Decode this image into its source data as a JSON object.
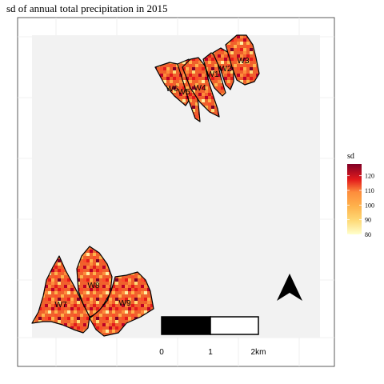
{
  "title": "sd of annual total precipitation in 2015",
  "legend": {
    "title": "sd",
    "ticks": [
      {
        "label": "80",
        "value": 80
      },
      {
        "label": "90",
        "value": 90
      },
      {
        "label": "100",
        "value": 100
      },
      {
        "label": "110",
        "value": 110
      },
      {
        "label": "120",
        "value": 120
      }
    ],
    "range": [
      80,
      128
    ],
    "colors": [
      "#ffffcc",
      "#ffeda0",
      "#fed976",
      "#feb24c",
      "#fd8d3c",
      "#fc4e2a",
      "#e31a1c",
      "#bd0026",
      "#800026"
    ]
  },
  "watersheds": [
    {
      "label": "W1"
    },
    {
      "label": "W2"
    },
    {
      "label": "W3"
    },
    {
      "label": "W4"
    },
    {
      "label": "W5"
    },
    {
      "label": "W6"
    },
    {
      "label": "W7"
    },
    {
      "label": "W8"
    },
    {
      "label": "W9"
    }
  ],
  "scalebar": {
    "labels": [
      "0",
      "1",
      "2km"
    ]
  },
  "north_arrow": "north-arrow-icon",
  "panel_background": "#f2f2f2",
  "grid": true
}
